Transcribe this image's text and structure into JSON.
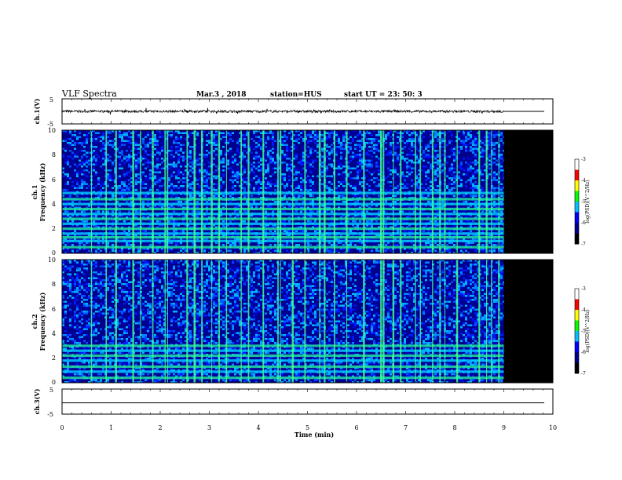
{
  "header": {
    "title": "VLF Spectra",
    "date": "Mar.3  , 2018",
    "station": "station=HUS",
    "start": "start  UT  =   23: 50: 3"
  },
  "chart_data": [
    {
      "type": "line",
      "panel": "ch1-waveform",
      "ylabel": "ch.1(V)",
      "ylim": [
        -5,
        5
      ],
      "yticks": [
        "5",
        "-5"
      ],
      "xlim": [
        0,
        10
      ],
      "signal_mean": 0,
      "signal_std": 0.3,
      "data_end_min": 9.0,
      "after_end_value": 0
    },
    {
      "type": "heatmap",
      "panel": "ch1-spectrogram",
      "ylabel": "ch.1\nFrequency  (kHz)",
      "ylim": [
        0,
        10
      ],
      "yticks": [
        "0",
        "2",
        "4",
        "6",
        "8",
        "10"
      ],
      "xlim": [
        0,
        10
      ],
      "data_end_min": 9.0,
      "line_bands_khz": [
        0.5,
        1.0,
        1.3,
        1.6,
        2.0,
        2.4,
        2.8,
        3.2,
        3.6,
        4.0,
        4.4,
        4.9
      ],
      "noise_upper_khz": 10,
      "colorbar": {
        "label": "log(PSD)(V^2/Hz)",
        "range": [
          -7,
          -3
        ],
        "ticks": [
          "-3",
          "-4",
          "-5",
          "-6",
          "-7"
        ]
      }
    },
    {
      "type": "heatmap",
      "panel": "ch2-spectrogram",
      "ylabel": "ch.2\nFrequency  (kHz)",
      "ylim": [
        0,
        10
      ],
      "yticks": [
        "0",
        "2",
        "4",
        "6",
        "8",
        "10"
      ],
      "xlim": [
        0,
        10
      ],
      "data_end_min": 9.0,
      "line_bands_khz": [
        0.4,
        0.9,
        1.3,
        1.8,
        2.2,
        2.6,
        3.0
      ],
      "noise_upper_khz": 10,
      "colorbar": {
        "label": "log(PSD)(V^2/Hz)",
        "range": [
          -7,
          -3
        ],
        "ticks": [
          "-3",
          "-4",
          "-5",
          "-6",
          "-7"
        ]
      }
    },
    {
      "type": "line",
      "panel": "ch3-waveform",
      "ylabel": "ch.3(V)",
      "ylim": [
        -5,
        5
      ],
      "yticks": [
        "5",
        "-5"
      ],
      "xlim": [
        0,
        10
      ],
      "signal_mean": -1,
      "signal_std": 0
    }
  ],
  "x_axis": {
    "label": "Time  (min)",
    "ticks": [
      "0",
      "1",
      "2",
      "3",
      "4",
      "5",
      "6",
      "7",
      "8",
      "9",
      "10"
    ]
  },
  "spheric_times_min": [
    0.6,
    0.9,
    1.1,
    1.45,
    1.6,
    1.85,
    2.1,
    2.15,
    2.55,
    2.7,
    2.85,
    3.05,
    3.2,
    3.35,
    3.65,
    3.8,
    4.1,
    4.4,
    4.45,
    4.7,
    4.95,
    5.25,
    5.35,
    5.55,
    5.8,
    6.15,
    6.5,
    6.55,
    6.75,
    6.9,
    7.2,
    7.3,
    7.55,
    7.7,
    7.8,
    8.05,
    8.5,
    8.65,
    8.75,
    8.9
  ]
}
